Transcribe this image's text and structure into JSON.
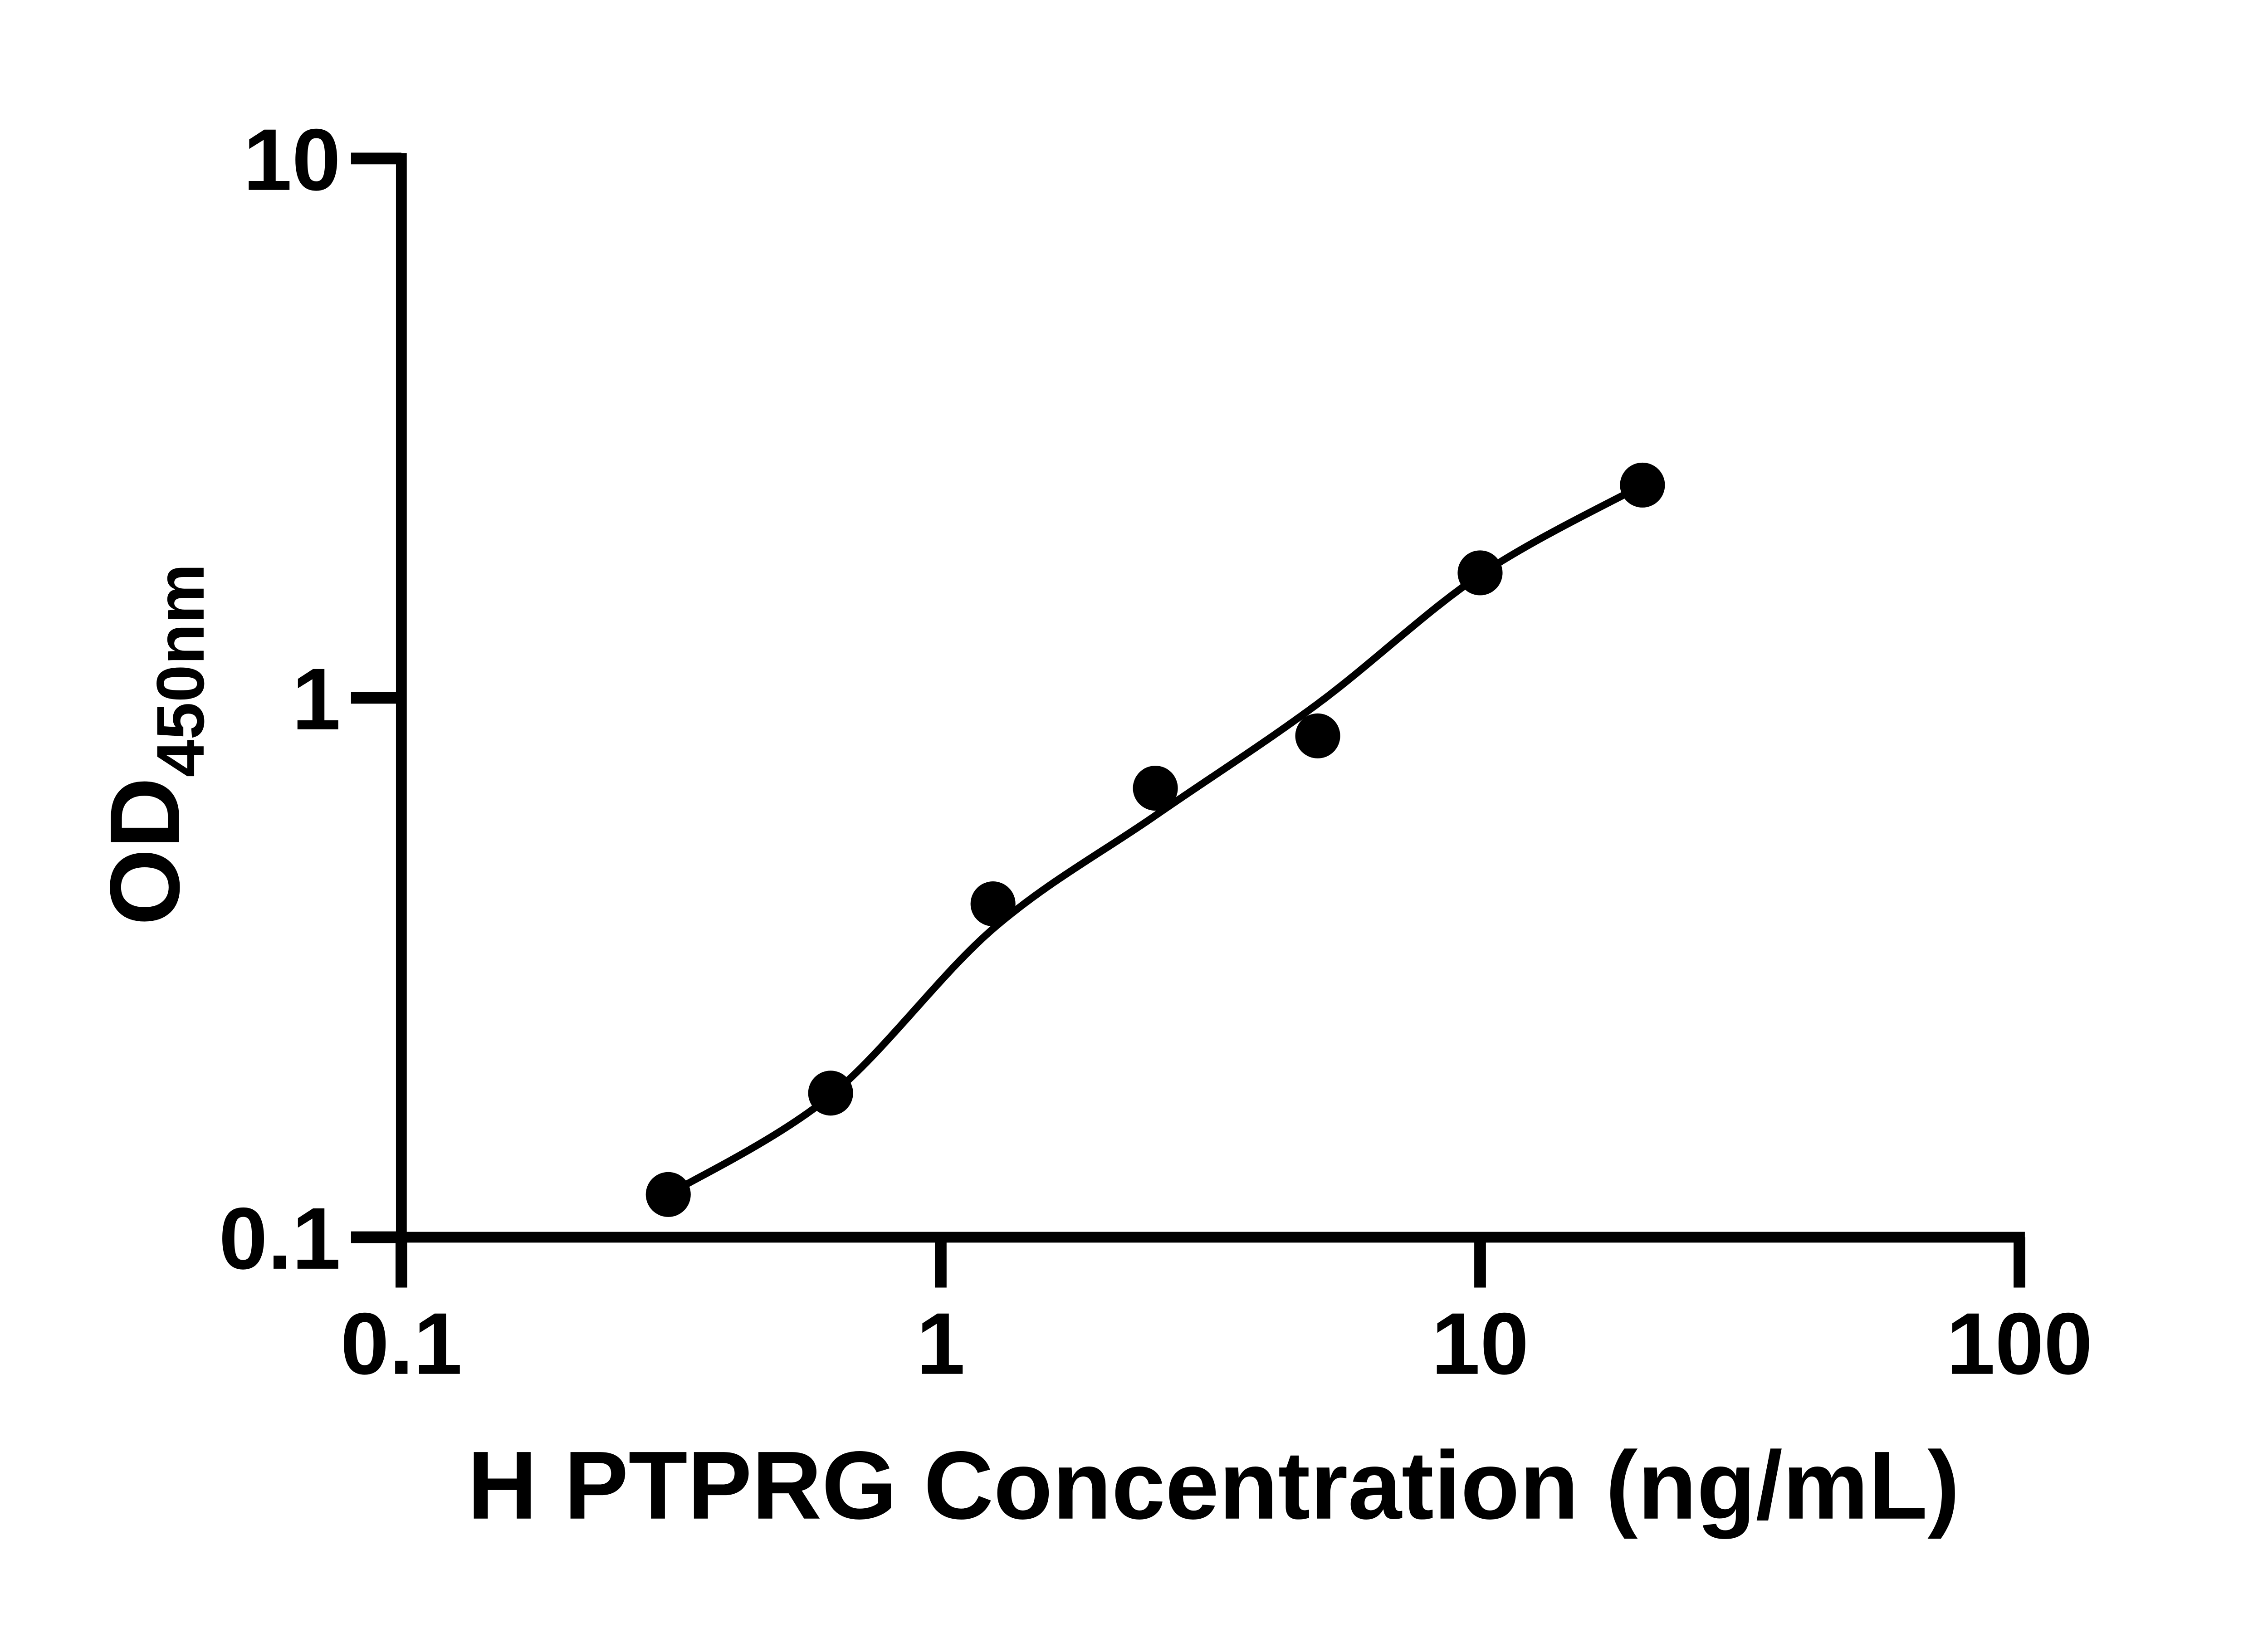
{
  "figure": {
    "background": "#ffffff",
    "ink": "#000000"
  },
  "chart_data": {
    "type": "scatter",
    "title": "",
    "xlabel": "H PTPRG Concentration (ng/mL)",
    "ylabel": "OD",
    "ylabel_subscript": "450nm",
    "x_scale": "log10",
    "y_scale": "log10",
    "xlim": [
      0.1,
      100
    ],
    "ylim": [
      0.1,
      10
    ],
    "x_ticks": [
      0.1,
      1,
      10,
      100
    ],
    "x_tick_labels": [
      "0.1",
      "1",
      "10",
      "100"
    ],
    "y_ticks": [
      0.1,
      1,
      10
    ],
    "y_tick_labels": [
      "0.1",
      "1",
      "10"
    ],
    "grid": false,
    "legend": "none",
    "series": [
      {
        "name": "standards",
        "marker": "filled-circle",
        "color": "#000000",
        "points": [
          {
            "x": 0.3125,
            "y": 0.12
          },
          {
            "x": 0.625,
            "y": 0.185
          },
          {
            "x": 1.25,
            "y": 0.415
          },
          {
            "x": 2.5,
            "y": 0.68
          },
          {
            "x": 5,
            "y": 0.85
          },
          {
            "x": 10,
            "y": 1.705
          },
          {
            "x": 20,
            "y": 2.48
          }
        ]
      }
    ],
    "fit_curve": {
      "name": "fitted-standard-curve",
      "color": "#000000",
      "samples": [
        {
          "x": 0.3125,
          "y": 0.12
        },
        {
          "x": 0.625,
          "y": 0.183
        },
        {
          "x": 1.25,
          "y": 0.373
        },
        {
          "x": 2.5,
          "y": 0.605
        },
        {
          "x": 5,
          "y": 0.975
        },
        {
          "x": 10,
          "y": 1.69
        },
        {
          "x": 20,
          "y": 2.48
        }
      ]
    }
  }
}
